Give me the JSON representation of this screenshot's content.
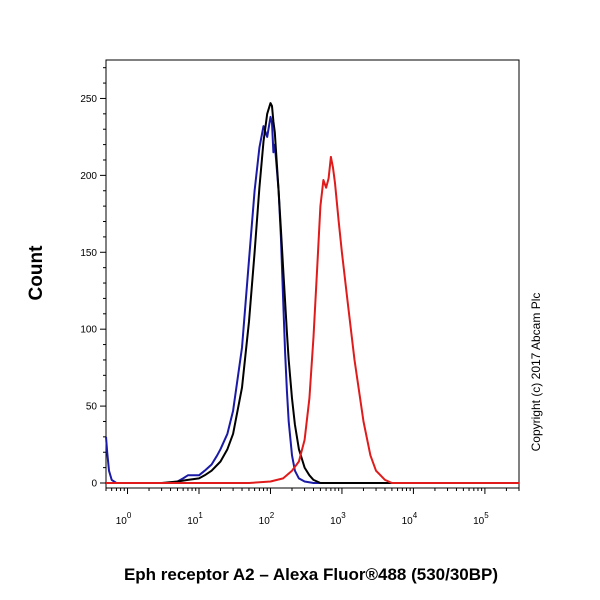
{
  "chart_data": {
    "type": "line",
    "title": "",
    "xlabel": "Eph receptor A2 – Alexa Fluor®488 (530/30BP)",
    "ylabel": "Count",
    "x_scale": "log",
    "xlim": [
      0.5,
      300000
    ],
    "ylim": [
      0,
      275
    ],
    "y_ticks": [
      0,
      50,
      100,
      150,
      200,
      250
    ],
    "y_tick_labels": [
      "0",
      "50",
      "100",
      "150",
      "200",
      "250"
    ],
    "x_ticks": [
      1,
      10,
      100,
      1000,
      10000,
      100000
    ],
    "x_tick_labels": [
      {
        "base": "10",
        "exp": "0"
      },
      {
        "base": "10",
        "exp": "1"
      },
      {
        "base": "10",
        "exp": "2"
      },
      {
        "base": "10",
        "exp": "3"
      },
      {
        "base": "10",
        "exp": "4"
      },
      {
        "base": "10",
        "exp": "5"
      }
    ],
    "grid": false,
    "annotation": "Copyright (c) 2017 Abcam Plc",
    "series": [
      {
        "color": "#1a1aa6",
        "x": [
          0.5,
          0.52,
          0.55,
          0.6,
          0.7,
          1,
          2,
          4,
          5,
          6,
          7,
          8,
          10,
          12,
          15,
          18,
          20,
          25,
          30,
          40,
          50,
          60,
          70,
          80,
          90,
          100,
          105,
          110,
          115,
          120,
          130,
          140,
          150,
          160,
          170,
          180,
          200,
          220,
          250,
          300,
          400,
          500,
          1000,
          10000,
          100000,
          300000
        ],
        "y": [
          30,
          20,
          8,
          2,
          0,
          0,
          0,
          0,
          1,
          3,
          5,
          5,
          5,
          8,
          12,
          18,
          22,
          32,
          47,
          88,
          145,
          190,
          218,
          232,
          225,
          238,
          234,
          215,
          220,
          210,
          190,
          160,
          120,
          85,
          60,
          40,
          18,
          8,
          3,
          1,
          0,
          0,
          0,
          0,
          0,
          0
        ]
      },
      {
        "color": "#000000",
        "x": [
          0.5,
          1,
          3,
          5,
          7,
          10,
          12,
          15,
          20,
          25,
          30,
          40,
          50,
          60,
          70,
          80,
          90,
          100,
          105,
          110,
          115,
          120,
          130,
          140,
          150,
          160,
          170,
          180,
          200,
          220,
          250,
          300,
          350,
          400,
          500,
          1000,
          10000,
          100000,
          300000
        ],
        "y": [
          0,
          0,
          0,
          1,
          2,
          3,
          5,
          8,
          14,
          22,
          32,
          62,
          105,
          150,
          192,
          222,
          240,
          247,
          245,
          235,
          228,
          215,
          190,
          165,
          140,
          118,
          98,
          80,
          55,
          38,
          22,
          10,
          5,
          2,
          0,
          0,
          0,
          0,
          0
        ]
      },
      {
        "color": "#e01b1b",
        "x": [
          0.5,
          10,
          50,
          100,
          150,
          200,
          250,
          300,
          350,
          400,
          450,
          500,
          550,
          600,
          650,
          700,
          750,
          800,
          900,
          1000,
          1200,
          1500,
          2000,
          2500,
          3000,
          4000,
          5000,
          10000,
          100000,
          300000
        ],
        "y": [
          0,
          0,
          0,
          1,
          3,
          8,
          14,
          28,
          55,
          95,
          140,
          180,
          197,
          192,
          198,
          212,
          205,
          195,
          170,
          150,
          118,
          80,
          40,
          18,
          8,
          2,
          0,
          0,
          0,
          0
        ]
      }
    ]
  }
}
